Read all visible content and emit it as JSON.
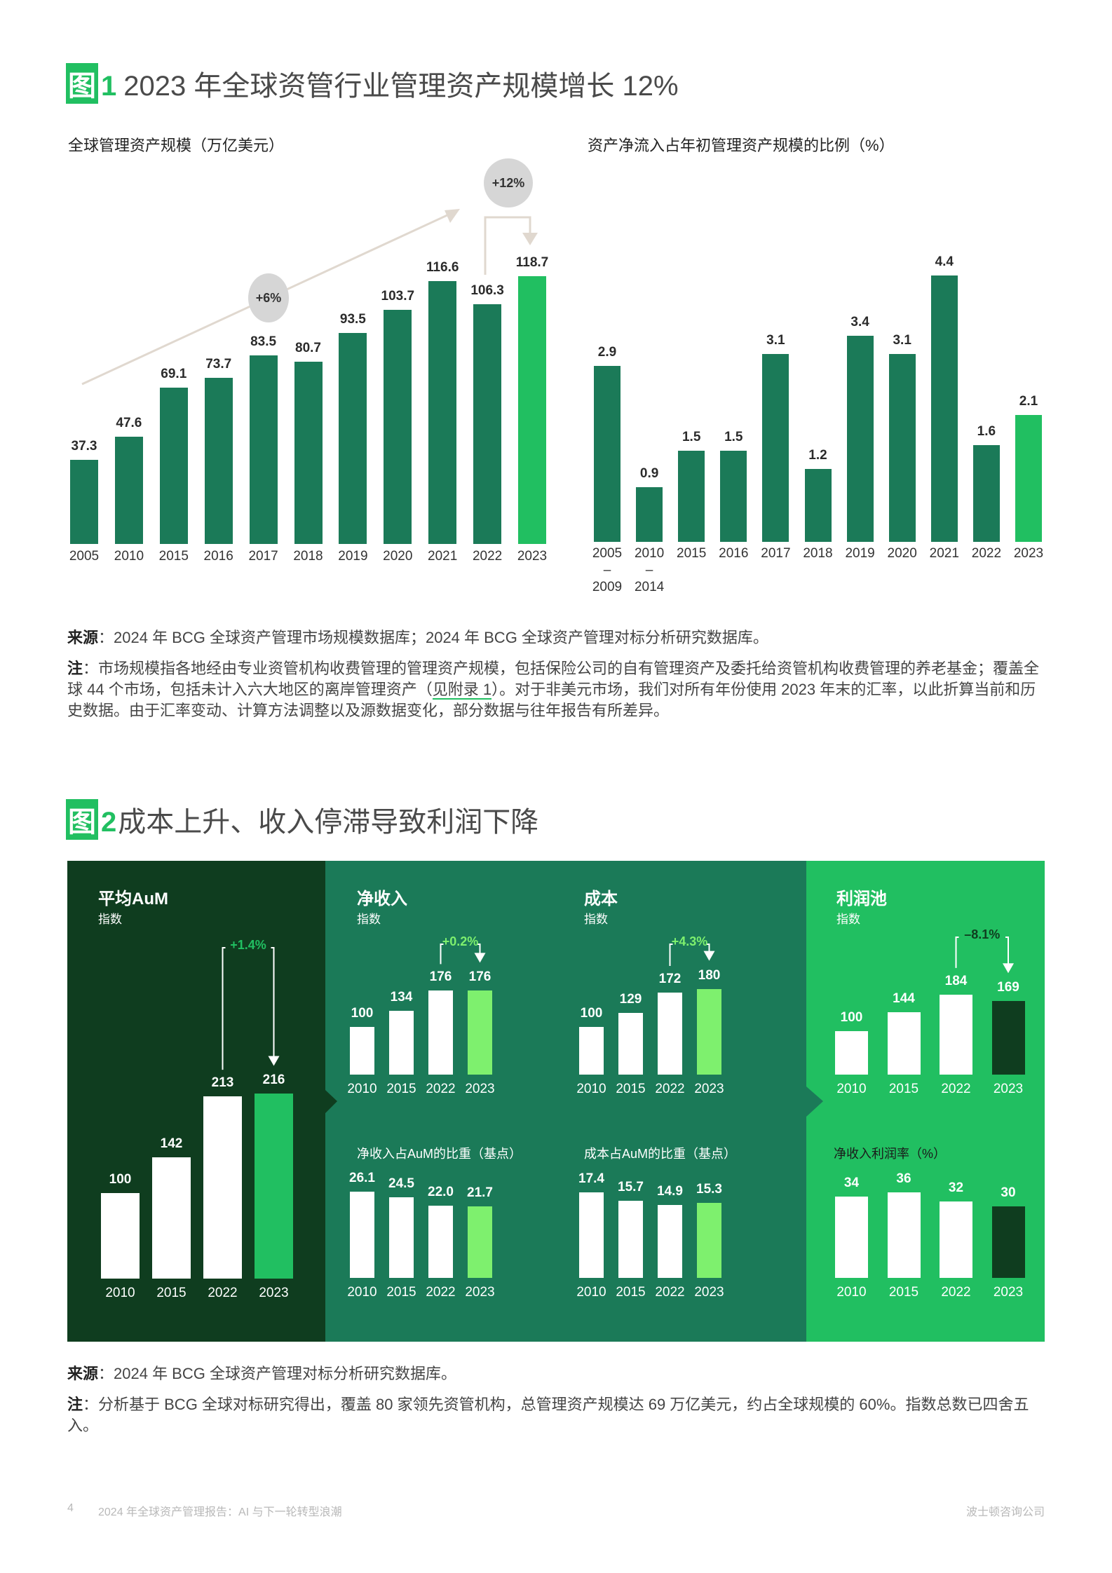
{
  "figure1": {
    "tag": "图",
    "number": "1",
    "title": "2023 年全球资管行业管理资产规模增长 12%",
    "left_subtitle": "全球管理资产规模（万亿美元）",
    "right_subtitle": "资产净流入占年初管理资产规模的比例（%）",
    "cagr_label": "+6%",
    "yoy_label": "+12%",
    "source_label": "来源",
    "source_text": "：2024 年 BCG 全球资产管理市场规模数据库；2024 年 BCG 全球资产管理对标分析研究数据库。",
    "note_label": "注",
    "note_text_1": "：市场规模指各地经由专业资管机构收费管理的管理资产规模，包括保险公司的自有管理资产及委托给资管机构收费管理的养老基金；覆盖全球 44 个市场，包括未计入六大地区的离岸管理资产（",
    "note_link": "见附录 1",
    "note_text_2": "）。对于非美元市场，我们对所有年份使用 2023 年末的汇率，以此折算当前和历史数据。由于汇率变动、计算方法调整以及源数据变化，部分数据与往年报告有所差异。"
  },
  "figure2": {
    "tag": "图",
    "number": "2",
    "title": "成本上升、收入停滞导致利润下降",
    "source_label": "来源",
    "source_text": "：2024 年 BCG 全球资产管理对标分析研究数据库。",
    "note_label": "注",
    "note_text": "：分析基于 BCG 全球对标研究得出，覆盖 80 家领先资管机构，总管理资产规模达 69 万亿美元，约占全球规模的 60%。指数总数已四舍五入。",
    "panels": {
      "aum": {
        "title": "平均AuM",
        "subtitle": "指数",
        "delta": "+1.4%"
      },
      "revenue": {
        "title": "净收入",
        "subtitle": "指数",
        "delta": "+0.2%",
        "sub_chart_title": "净收入占AuM的比重（基点）"
      },
      "cost": {
        "title": "成本",
        "subtitle": "指数",
        "delta": "+4.3%",
        "sub_chart_title": "成本占AuM的比重（基点）"
      },
      "profit": {
        "title": "利润池",
        "subtitle": "指数",
        "delta": "–8.1%",
        "sub_chart_title": "净收入利润率（%）"
      }
    }
  },
  "footer": {
    "page_number": "4",
    "report_title": "2024 年全球资产管理报告：AI 与下一轮转型浪潮",
    "company": "波士顿咨询公司"
  },
  "colors": {
    "dark_green": "#1b7a58",
    "bright_green": "#21bf61",
    "darkest_green": "#0f3d1f",
    "lime_green": "#7ef06e",
    "arrow_beige": "#e0d8cf",
    "circle_grey": "#d6d6d6"
  },
  "chart_data": [
    {
      "type": "bar",
      "title": "全球管理资产规模（万亿美元）",
      "categories": [
        "2005",
        "2010",
        "2015",
        "2016",
        "2017",
        "2018",
        "2019",
        "2020",
        "2021",
        "2022",
        "2023"
      ],
      "values": [
        37.3,
        47.6,
        69.1,
        73.7,
        83.5,
        80.7,
        93.5,
        103.7,
        116.6,
        106.3,
        118.7
      ],
      "annotations": [
        "+6% (CAGR trend arrow)",
        "+12% (2022→2023)"
      ],
      "highlight": "2023",
      "xlabel": "",
      "ylabel": "万亿美元"
    },
    {
      "type": "bar",
      "title": "资产净流入占年初管理资产规模的比例（%）",
      "categories": [
        "2005–2009",
        "2010–2014",
        "2015",
        "2016",
        "2017",
        "2018",
        "2019",
        "2020",
        "2021",
        "2022",
        "2023"
      ],
      "values": [
        2.9,
        0.9,
        1.5,
        1.5,
        3.1,
        1.2,
        3.4,
        3.1,
        4.4,
        1.6,
        2.1
      ],
      "highlight": "2023",
      "xlabel": "",
      "ylabel": "%"
    },
    {
      "type": "bar",
      "title": "平均AuM 指数",
      "categories": [
        "2010",
        "2015",
        "2022",
        "2023"
      ],
      "values": [
        100,
        142,
        213,
        216
      ],
      "annotation": "+1.4%"
    },
    {
      "type": "bar",
      "title": "净收入 指数",
      "categories": [
        "2010",
        "2015",
        "2022",
        "2023"
      ],
      "values": [
        100,
        134,
        176,
        176
      ],
      "annotation": "+0.2%"
    },
    {
      "type": "bar",
      "title": "成本 指数",
      "categories": [
        "2010",
        "2015",
        "2022",
        "2023"
      ],
      "values": [
        100,
        129,
        172,
        180
      ],
      "annotation": "+4.3%"
    },
    {
      "type": "bar",
      "title": "利润池 指数",
      "categories": [
        "2010",
        "2015",
        "2022",
        "2023"
      ],
      "values": [
        100,
        144,
        184,
        169
      ],
      "annotation": "–8.1%"
    },
    {
      "type": "bar",
      "title": "净收入占AuM的比重（基点）",
      "categories": [
        "2010",
        "2015",
        "2022",
        "2023"
      ],
      "values": [
        26.1,
        24.5,
        22.0,
        21.7
      ]
    },
    {
      "type": "bar",
      "title": "成本占AuM的比重（基点）",
      "categories": [
        "2010",
        "2015",
        "2022",
        "2023"
      ],
      "values": [
        17.4,
        15.7,
        14.9,
        15.3
      ]
    },
    {
      "type": "bar",
      "title": "净收入利润率（%）",
      "categories": [
        "2010",
        "2015",
        "2022",
        "2023"
      ],
      "values": [
        34,
        36,
        32,
        30
      ]
    }
  ]
}
